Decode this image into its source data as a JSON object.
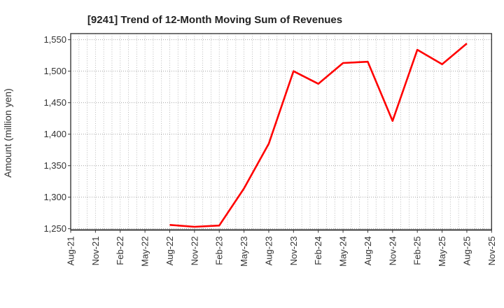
{
  "chart": {
    "title": "[9241]  Trend of 12-Month Moving Sum of Revenues",
    "y_axis_label": "Amount (million yen)"
  },
  "colors": {
    "line": "#ff0000",
    "grid_minor": "#aaaaaa",
    "grid_major": "#999999",
    "frame": "#3a3a3a",
    "text": "#333333",
    "title_text": "#222222",
    "background": "#ffffff"
  },
  "chart_data": {
    "type": "line",
    "title": "[9241]  Trend of 12-Month Moving Sum of Revenues",
    "xlabel": "",
    "ylabel": "Amount (million yen)",
    "ylim": [
      1248,
      1558
    ],
    "y_tick_values": [
      1250,
      1300,
      1350,
      1400,
      1450,
      1500,
      1550
    ],
    "y_tick_labels": [
      "1,250",
      "1,300",
      "1,350",
      "1,400",
      "1,450",
      "1,500",
      "1,550"
    ],
    "x_tick_labels": [
      "Aug-21",
      "Nov-21",
      "Feb-22",
      "May-22",
      "Aug-22",
      "Nov-22",
      "Feb-23",
      "May-23",
      "Aug-23",
      "Nov-23",
      "Feb-24",
      "May-24",
      "Aug-24",
      "Nov-24",
      "Feb-25",
      "May-25",
      "Aug-25",
      "Nov-25"
    ],
    "months_per_tick": 3,
    "grid": "on (dotted; vertical minor gridline every month, horizontal every 50)",
    "legend": "none",
    "series": [
      {
        "name": "12-Month Moving Sum of Revenues",
        "color": "#ff0000",
        "points": [
          {
            "x": "Aug-22",
            "y": 1256
          },
          {
            "x": "Nov-22",
            "y": 1253
          },
          {
            "x": "Feb-23",
            "y": 1255
          },
          {
            "x": "May-23",
            "y": 1314
          },
          {
            "x": "Aug-23",
            "y": 1385
          },
          {
            "x": "Nov-23",
            "y": 1500
          },
          {
            "x": "Feb-24",
            "y": 1480
          },
          {
            "x": "May-24",
            "y": 1513
          },
          {
            "x": "Aug-24",
            "y": 1515
          },
          {
            "x": "Nov-24",
            "y": 1421
          },
          {
            "x": "Feb-25",
            "y": 1534
          },
          {
            "x": "May-25",
            "y": 1511
          },
          {
            "x": "Aug-25",
            "y": 1544
          }
        ]
      }
    ]
  }
}
